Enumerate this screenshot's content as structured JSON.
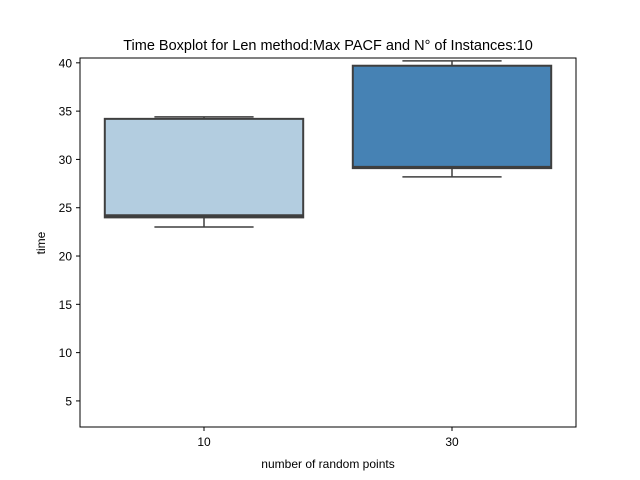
{
  "chart_data": {
    "type": "box",
    "title": "Time Boxplot for Len method:Max PACF and N° of Instances:10",
    "xlabel": "number of random points",
    "ylabel": "time",
    "categories": [
      "10",
      "30"
    ],
    "boxes": [
      {
        "category": "10",
        "whisker_low": 23.0,
        "q1": 24.0,
        "median": 24.2,
        "q3": 34.2,
        "whisker_high": 34.4,
        "color": "#b3cde0"
      },
      {
        "category": "30",
        "whisker_low": 28.2,
        "q1": 29.1,
        "median": 29.2,
        "q3": 39.7,
        "whisker_high": 40.2,
        "color": "#4682b4"
      }
    ],
    "ylim": [
      2.3,
      40.5
    ],
    "yticks": [
      5,
      10,
      15,
      20,
      25,
      30,
      35,
      40
    ],
    "grid": false,
    "legend": "none"
  }
}
